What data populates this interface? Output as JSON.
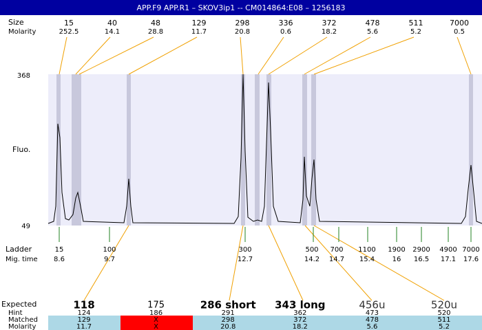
{
  "header": {
    "title": "APP.F9  APP.R1 – SKOV3ip1 -- CM014864:E08 – 1256183"
  },
  "peaks": {
    "size_label": "Size",
    "molarity_label": "Molarity",
    "items": [
      {
        "size": "15",
        "molarity": "252.5"
      },
      {
        "size": "40",
        "molarity": "14.1"
      },
      {
        "size": "48",
        "molarity": "28.8"
      },
      {
        "size": "129",
        "molarity": "11.7"
      },
      {
        "size": "298",
        "molarity": "20.8"
      },
      {
        "size": "336",
        "molarity": "0.6"
      },
      {
        "size": "372",
        "molarity": "18.2"
      },
      {
        "size": "478",
        "molarity": "5.6"
      },
      {
        "size": "511",
        "molarity": "5.2"
      },
      {
        "size": "7000",
        "molarity": "0.5"
      }
    ]
  },
  "plot": {
    "y_max": "368",
    "y_min": "49",
    "y_label": "Fluo."
  },
  "ladder": {
    "label": "Ladder",
    "time_label": "Mig. time",
    "items": [
      {
        "size": "15",
        "time": "8.6"
      },
      {
        "size": "100",
        "time": "9.7"
      },
      {
        "size": "300",
        "time": "12.7"
      },
      {
        "size": "500",
        "time": "14.2"
      },
      {
        "size": "700",
        "time": "14.7"
      },
      {
        "size": "1100",
        "time": "15.4"
      },
      {
        "size": "1900",
        "time": "16"
      },
      {
        "size": "2900",
        "time": "16.5"
      },
      {
        "size": "4900",
        "time": "17.1"
      },
      {
        "size": "7000",
        "time": "17.6"
      }
    ]
  },
  "expected": {
    "labels": {
      "expected": "Expected",
      "hint": "Hint",
      "matched": "Matched",
      "molarity": "Molarity"
    },
    "columns": [
      {
        "expected": "118",
        "hint": "124",
        "matched": "129",
        "molarity": "11.7"
      },
      {
        "expected": "175",
        "hint": "186",
        "matched": "X",
        "molarity": "X"
      },
      {
        "expected": "286 short",
        "hint": "291",
        "matched": "298",
        "molarity": "20.8"
      },
      {
        "expected": "343 long",
        "hint": "362",
        "matched": "372",
        "molarity": "18.2"
      },
      {
        "expected": "456u",
        "hint": "473",
        "matched": "478",
        "molarity": "5.6"
      },
      {
        "expected": "520u",
        "hint": "520",
        "matched": "511",
        "molarity": "5.2"
      }
    ]
  }
}
